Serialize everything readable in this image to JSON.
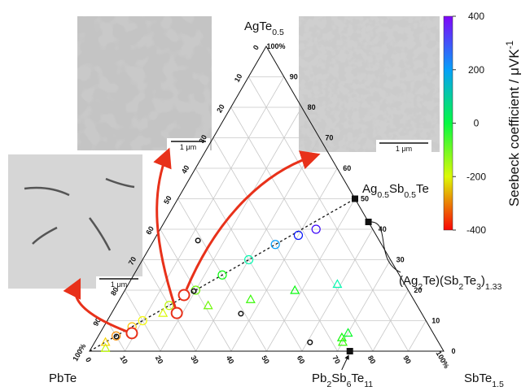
{
  "figure": {
    "vertices": {
      "top": [
        {
          "t": "AgTe"
        },
        {
          "sub": "0.5"
        }
      ],
      "left": [
        {
          "t": "PbTe"
        }
      ],
      "right": [
        {
          "t": "SbTe"
        },
        {
          "sub": "1.5"
        }
      ]
    },
    "left_ticks": [
      0,
      10,
      20,
      30,
      40,
      50,
      60,
      70,
      80,
      90,
      {
        "value": 100,
        "label": "100%"
      }
    ],
    "right_ticks": [
      0,
      10,
      20,
      30,
      40,
      50,
      60,
      70,
      80,
      90,
      {
        "value": 100,
        "label": "100%"
      }
    ],
    "bottom_ticks": [
      0,
      10,
      20,
      30,
      40,
      50,
      60,
      70,
      80,
      90,
      {
        "value": 100,
        "label": "100%"
      }
    ],
    "colorbar": {
      "label": [
        {
          "t": "Seebeck coefficient / μVK"
        },
        {
          "sup": "-1"
        }
      ],
      "lim": [
        -400,
        400
      ],
      "ticks": [
        400,
        200,
        0,
        -200,
        -400
      ]
    },
    "compounds": [
      {
        "label": [
          {
            "t": "Ag"
          },
          {
            "sub": "0.5"
          },
          {
            "t": "Sb"
          },
          {
            "sub": "0.5"
          },
          {
            "t": "Te"
          }
        ],
        "a": 0.5,
        "s": 0.5
      },
      {
        "label": [
          {
            "t": "(Ag"
          },
          {
            "sub": "2"
          },
          {
            "t": "Te)(Sb"
          },
          {
            "sub": "2"
          },
          {
            "t": "Te"
          },
          {
            "sub": "3"
          },
          {
            "t": ")"
          },
          {
            "sub": "1.33"
          }
        ],
        "a": 0.424,
        "s": 0.576
      },
      {
        "label": [
          {
            "t": "Pb"
          },
          {
            "sub": "2"
          },
          {
            "t": "Sb"
          },
          {
            "sub": "6"
          },
          {
            "t": "Te"
          },
          {
            "sub": "11"
          }
        ],
        "a": 0,
        "s": 0.735
      }
    ],
    "samples": [
      {
        "marker": "circle",
        "a": 0.05,
        "s": 0.05,
        "seebeck": -300
      },
      {
        "marker": "circle",
        "a": 0.08,
        "s": 0.08,
        "seebeck": -260
      },
      {
        "marker": "circle",
        "a": 0.1,
        "s": 0.1,
        "seebeck": -220
      },
      {
        "marker": "circle",
        "a": 0.15,
        "s": 0.15,
        "seebeck": -180
      },
      {
        "marker": "circle",
        "a": 0.2,
        "s": 0.2,
        "seebeck": -120
      },
      {
        "marker": "circle",
        "a": 0.25,
        "s": 0.25,
        "seebeck": -40
      },
      {
        "marker": "circle",
        "a": 0.3,
        "s": 0.3,
        "seebeck": 80
      },
      {
        "marker": "circle",
        "a": 0.35,
        "s": 0.35,
        "seebeck": 200
      },
      {
        "marker": "circle",
        "a": 0.38,
        "s": 0.4,
        "seebeck": 300
      },
      {
        "marker": "circle",
        "a": 0.4,
        "s": 0.44,
        "seebeck": 350
      },
      {
        "marker": "triangle",
        "a": 0.125,
        "s": 0.145,
        "seebeck": -200
      },
      {
        "marker": "triangle",
        "a": 0.15,
        "s": 0.26,
        "seebeck": -120
      },
      {
        "marker": "triangle",
        "a": 0.17,
        "s": 0.37,
        "seebeck": -80
      },
      {
        "marker": "triangle",
        "a": 0.2,
        "s": 0.48,
        "seebeck": -40
      },
      {
        "marker": "triangle",
        "a": 0.22,
        "s": 0.59,
        "seebeck": 80
      },
      {
        "marker": "triangle",
        "a": 0.045,
        "s": 0.69,
        "seebeck": -50
      },
      {
        "marker": "triangle",
        "a": 0.06,
        "s": 0.7,
        "seebeck": -20
      },
      {
        "marker": "triangle",
        "a": 0.03,
        "s": 0.7,
        "seebeck": -80
      },
      {
        "marker": "triangle",
        "a": 0.01,
        "s": 0.04,
        "seebeck": -180
      },
      {
        "marker": "triangle",
        "a": 0.03,
        "s": 0.03,
        "seebeck": -250
      }
    ],
    "highlighted": [
      {
        "a": 0.059,
        "s": 0.09
      },
      {
        "a": 0.125,
        "s": 0.184
      },
      {
        "a": 0.184,
        "s": 0.175
      }
    ],
    "reference": [
      {
        "a": 0.363,
        "s": 0.125
      },
      {
        "a": 0.197,
        "s": 0.196
      },
      {
        "a": 0.123,
        "s": 0.366
      },
      {
        "a": 0.029,
        "s": 0.608
      },
      {
        "a": 0.048,
        "s": 0.052
      }
    ],
    "micrographs": [
      {
        "scale": "1 μm"
      },
      {
        "scale": "1 μm"
      },
      {
        "scale": "1 μm"
      }
    ]
  }
}
